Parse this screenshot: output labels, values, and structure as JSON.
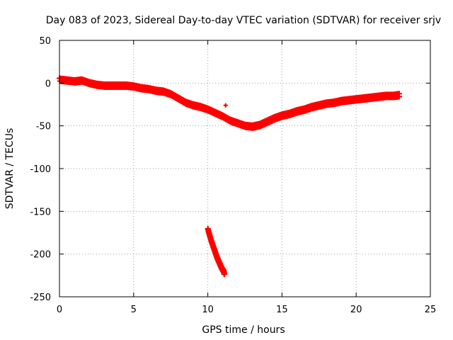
{
  "chart_data": {
    "type": "scatter",
    "title": "Day 083 of 2023, Sidereal Day-to-day VTEC variation (SDTVAR) for receiver srjv",
    "xlabel": "GPS time / hours",
    "ylabel": "SDTVAR / TECUs",
    "xlim": [
      0,
      25
    ],
    "ylim": [
      -250,
      50
    ],
    "xticks": [
      0,
      5,
      10,
      15,
      20,
      25
    ],
    "yticks": [
      -250,
      -200,
      -150,
      -100,
      -50,
      0,
      50
    ],
    "grid": true,
    "marker": "plus",
    "color": "#ff0000",
    "series": [
      {
        "name": "main",
        "x": [
          0.0,
          0.5,
          1.0,
          1.5,
          2.0,
          2.5,
          3.0,
          3.5,
          4.0,
          4.5,
          5.0,
          5.5,
          6.0,
          6.5,
          7.0,
          7.5,
          8.0,
          8.5,
          9.0,
          9.5,
          10.0,
          10.5,
          11.0,
          11.5,
          12.0,
          12.5,
          13.0,
          13.5,
          14.0,
          14.5,
          15.0,
          15.5,
          16.0,
          16.5,
          17.0,
          17.5,
          18.0,
          18.5,
          19.0,
          19.5,
          20.0,
          20.5,
          21.0,
          21.5,
          22.0,
          22.5,
          22.9
        ],
        "y": [
          4,
          3,
          2,
          3,
          0,
          -2,
          -3,
          -3,
          -3,
          -3,
          -4,
          -6,
          -7,
          -9,
          -10,
          -13,
          -18,
          -23,
          -26,
          -28,
          -31,
          -35,
          -39,
          -44,
          -47,
          -50,
          -51,
          -49,
          -45,
          -41,
          -38,
          -36,
          -33,
          -31,
          -28,
          -26,
          -24,
          -23,
          -21,
          -20,
          -19,
          -18,
          -17,
          -16,
          -15,
          -15,
          -14
        ]
      },
      {
        "name": "outlier-segment",
        "x": [
          10.0,
          10.1,
          10.2,
          10.3,
          10.4,
          10.5,
          10.6,
          10.7,
          10.8,
          10.9,
          11.0,
          11.1
        ],
        "y": [
          -172,
          -178,
          -184,
          -189,
          -194,
          -199,
          -204,
          -208,
          -212,
          -216,
          -219,
          -222
        ]
      },
      {
        "name": "isolated",
        "x": [
          11.2
        ],
        "y": [
          -26
        ]
      }
    ]
  }
}
